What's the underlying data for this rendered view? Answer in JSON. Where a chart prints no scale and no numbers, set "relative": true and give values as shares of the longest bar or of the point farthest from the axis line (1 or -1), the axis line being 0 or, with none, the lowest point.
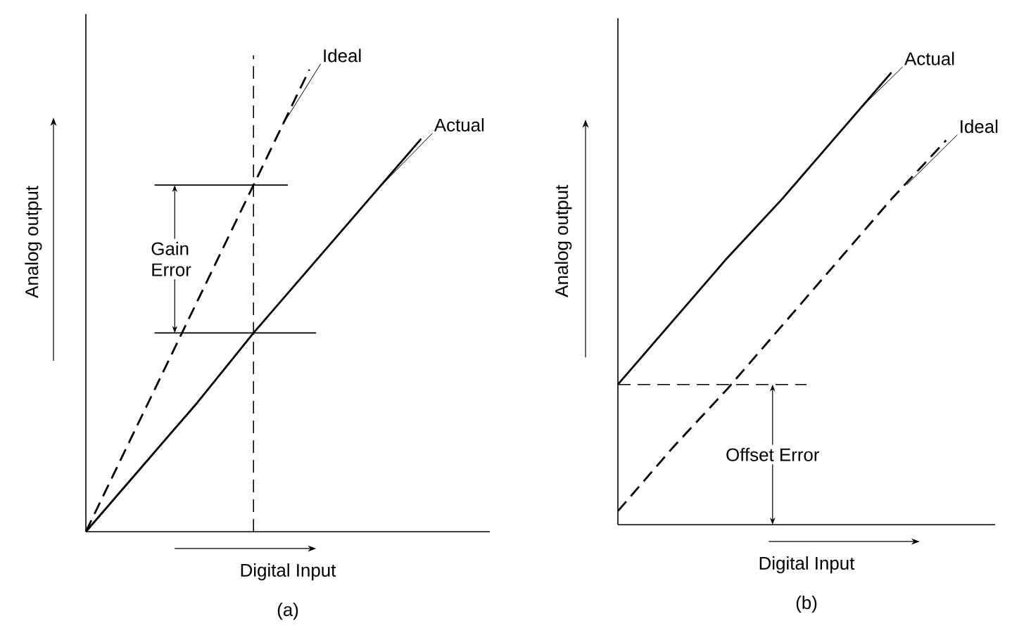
{
  "chart_data": [
    {
      "type": "line",
      "title": "(a)",
      "xlabel": "Digital Input",
      "ylabel": "Analog output",
      "relative": true,
      "categories": [
        null,
        null,
        null,
        null,
        null,
        null,
        null
      ],
      "series": [
        {
          "name": "Ideal",
          "color": "#000000",
          "line_style": "dashed",
          "values": [
            0,
            0.25,
            0.5,
            0.75,
            1,
            null,
            null
          ]
        },
        {
          "name": "Actual",
          "color": "#000000",
          "line_style": "solid",
          "values": [
            0,
            0.14,
            0.28,
            0.43,
            0.57,
            0.71,
            0.85
          ]
        }
      ],
      "ref_lines": [
        {
          "axis": "y",
          "value": 0.75,
          "line_style": "solid"
        },
        {
          "axis": "y",
          "value": 0.43,
          "line_style": "solid"
        }
      ],
      "annotations": [
        "Gain Error"
      ]
    },
    {
      "type": "line",
      "title": "(b)",
      "xlabel": "Digital Input",
      "ylabel": "Analog output",
      "relative": true,
      "categories": [
        null,
        null,
        null,
        null,
        null,
        null,
        null
      ],
      "series": [
        {
          "name": "Actual",
          "color": "#000000",
          "line_style": "solid",
          "values": [
            0.31,
            0.45,
            0.59,
            0.72,
            0.86,
            1,
            null
          ]
        },
        {
          "name": "Ideal",
          "color": "#000000",
          "line_style": "dashed",
          "values": [
            0.03,
            0.17,
            0.3,
            0.44,
            0.58,
            0.72,
            0.85
          ]
        }
      ],
      "ref_lines": [
        {
          "axis": "y",
          "value": 0.31,
          "line_style": "dashed"
        }
      ],
      "annotations": [
        "Offset Error"
      ]
    }
  ]
}
